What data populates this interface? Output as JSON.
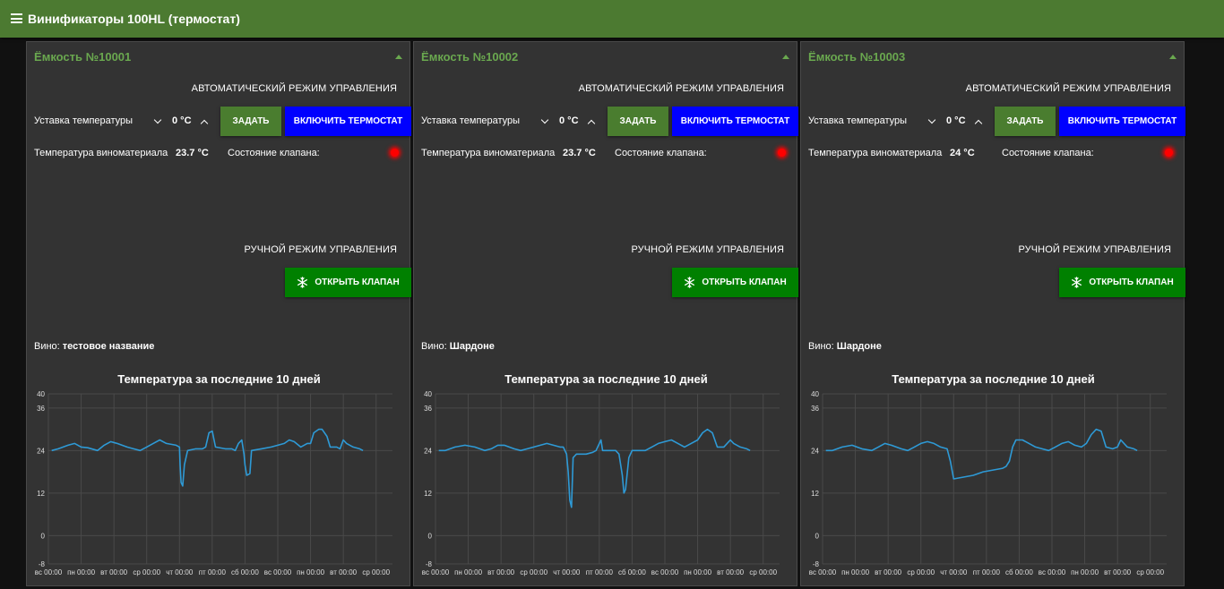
{
  "app": {
    "title": "Винификаторы 100HL (термостат)",
    "menu_icon": "hamburger-menu-icon",
    "collapse_icon": "triangle-up-icon",
    "valve_icon": "snowflake-icon"
  },
  "colors": {
    "topbar": "#4c7a31",
    "card_title": "#6aa84f",
    "set_button": "#4a7d2f",
    "thermostat_button": "#0000ff",
    "valve_button": "#008000",
    "led_off": "#ff0000",
    "chart_line": "#2e9ad6",
    "chart_grid": "#4a4a4a"
  },
  "tanks": [
    {
      "title": "Ёмкость №10001",
      "auto_mode_label": "Автоматический режим управления",
      "setpoint_label": "Уставка температуры",
      "setpoint_value": "0 °C",
      "set_button": "Задать",
      "thermostat_button": "Включить термостат",
      "temp_label": "Температура виноматериала",
      "temp_value": "23.7 °C",
      "valve_label": "Состояние клапана:",
      "manual_mode_label": "Ручной режим управления",
      "open_valve_button": "Открыть клапан",
      "wine_label": "Вино:",
      "wine_name": "тестовое название",
      "chart_title": "Температура за последние 10 дней"
    },
    {
      "title": "Ёмкость №10002",
      "auto_mode_label": "Автоматический режим управления",
      "setpoint_label": "Уставка температуры",
      "setpoint_value": "0 °C",
      "set_button": "Задать",
      "thermostat_button": "Включить термостат",
      "temp_label": "Температура виноматериала",
      "temp_value": "23.7 °C",
      "valve_label": "Состояние клапана:",
      "manual_mode_label": "Ручной режим управления",
      "open_valve_button": "Открыть клапан",
      "wine_label": "Вино:",
      "wine_name": "Шардоне",
      "chart_title": "Температура за последние 10 дней"
    },
    {
      "title": "Ёмкость №10003",
      "auto_mode_label": "Автоматический режим управления",
      "setpoint_label": "Уставка температуры",
      "setpoint_value": "0 °C",
      "set_button": "Задать",
      "thermostat_button": "Включить термостат",
      "temp_label": "Температура виноматериала",
      "temp_value": "24 °C",
      "valve_label": "Состояние клапана:",
      "manual_mode_label": "Ручной режим управления",
      "open_valve_button": "Открыть клапан",
      "wine_label": "Вино:",
      "wine_name": "Шардоне",
      "chart_title": "Температура за последние 10 дней"
    }
  ],
  "chart_data": [
    {
      "type": "line",
      "title": "Температура за последние 10 дней",
      "xlabel": "",
      "ylabel": "",
      "ylim": [
        -8,
        40
      ],
      "yticks": [
        40,
        36,
        24,
        12,
        0,
        -8
      ],
      "xlim": [
        0,
        10.5
      ],
      "xticks": [
        {
          "x": 0,
          "label": "вс 00:00"
        },
        {
          "x": 1,
          "label": "пн 00:00"
        },
        {
          "x": 2,
          "label": "вт 00:00"
        },
        {
          "x": 3,
          "label": "ср 00:00"
        },
        {
          "x": 4,
          "label": "чт 00:00"
        },
        {
          "x": 5,
          "label": "пт 00:00"
        },
        {
          "x": 6,
          "label": "сб 00:00"
        },
        {
          "x": 7,
          "label": "вс 00:00"
        },
        {
          "x": 8,
          "label": "пн 00:00"
        },
        {
          "x": 9,
          "label": "вт 00:00"
        },
        {
          "x": 10,
          "label": "ср 00:00"
        }
      ],
      "grid": true,
      "series": [
        {
          "points": [
            [
              0.1,
              24
            ],
            [
              0.3,
              24.5
            ],
            [
              0.6,
              25.5
            ],
            [
              0.8,
              26
            ],
            [
              1.0,
              25
            ],
            [
              1.2,
              24.8
            ],
            [
              1.5,
              24
            ],
            [
              1.7,
              25.5
            ],
            [
              1.9,
              26.5
            ],
            [
              2.1,
              26
            ],
            [
              2.4,
              25
            ],
            [
              2.6,
              24.5
            ],
            [
              2.8,
              24
            ],
            [
              3.0,
              25
            ],
            [
              3.2,
              26
            ],
            [
              3.4,
              27
            ],
            [
              3.6,
              26
            ],
            [
              3.9,
              25.5
            ],
            [
              4.0,
              25
            ],
            [
              4.02,
              20
            ],
            [
              4.05,
              15
            ],
            [
              4.1,
              14
            ],
            [
              4.15,
              20
            ],
            [
              4.25,
              24
            ],
            [
              4.5,
              24.5
            ],
            [
              4.7,
              24.5
            ],
            [
              4.8,
              25
            ],
            [
              4.9,
              29
            ],
            [
              5.0,
              29.5
            ],
            [
              5.1,
              25
            ],
            [
              5.4,
              24.5
            ],
            [
              5.6,
              24.5
            ],
            [
              5.7,
              24
            ],
            [
              5.8,
              26
            ],
            [
              5.9,
              27
            ],
            [
              5.97,
              23
            ],
            [
              6.0,
              20
            ],
            [
              6.05,
              17
            ],
            [
              6.15,
              17.5
            ],
            [
              6.2,
              24
            ],
            [
              6.5,
              24.5
            ],
            [
              6.8,
              25
            ],
            [
              7.0,
              25.5
            ],
            [
              7.2,
              26
            ],
            [
              7.35,
              27
            ],
            [
              7.5,
              26.5
            ],
            [
              7.7,
              25
            ],
            [
              7.9,
              26
            ],
            [
              8.0,
              26
            ],
            [
              8.1,
              29
            ],
            [
              8.25,
              30
            ],
            [
              8.35,
              30
            ],
            [
              8.5,
              28
            ],
            [
              8.6,
              25
            ],
            [
              8.8,
              25
            ],
            [
              8.9,
              24.5
            ],
            [
              9.0,
              27
            ],
            [
              9.1,
              26
            ],
            [
              9.3,
              25
            ],
            [
              9.5,
              24.5
            ],
            [
              9.6,
              24
            ]
          ]
        }
      ]
    },
    {
      "type": "line",
      "title": "Температура за последние 10 дней",
      "xlabel": "",
      "ylabel": "",
      "ylim": [
        -8,
        40
      ],
      "yticks": [
        40,
        36,
        24,
        12,
        0,
        -8
      ],
      "xlim": [
        0,
        10.5
      ],
      "xticks": [
        {
          "x": 0,
          "label": "вс 00:00"
        },
        {
          "x": 1,
          "label": "пн 00:00"
        },
        {
          "x": 2,
          "label": "вт 00:00"
        },
        {
          "x": 3,
          "label": "ср 00:00"
        },
        {
          "x": 4,
          "label": "чт 00:00"
        },
        {
          "x": 5,
          "label": "пт 00:00"
        },
        {
          "x": 6,
          "label": "сб 00:00"
        },
        {
          "x": 7,
          "label": "вс 00:00"
        },
        {
          "x": 8,
          "label": "пн 00:00"
        },
        {
          "x": 9,
          "label": "вт 00:00"
        },
        {
          "x": 10,
          "label": "ср 00:00"
        }
      ],
      "grid": true,
      "series": [
        {
          "points": [
            [
              0.1,
              24
            ],
            [
              0.3,
              24
            ],
            [
              0.6,
              25
            ],
            [
              0.9,
              25.5
            ],
            [
              1.2,
              25
            ],
            [
              1.5,
              24
            ],
            [
              1.7,
              24.5
            ],
            [
              1.9,
              25.5
            ],
            [
              2.1,
              25.5
            ],
            [
              2.4,
              24.5
            ],
            [
              2.6,
              24
            ],
            [
              2.8,
              24.5
            ],
            [
              3.0,
              25
            ],
            [
              3.2,
              25.5
            ],
            [
              3.4,
              26
            ],
            [
              3.6,
              25.5
            ],
            [
              3.8,
              25
            ],
            [
              3.9,
              25
            ],
            [
              4.0,
              23
            ],
            [
              4.05,
              18
            ],
            [
              4.1,
              10
            ],
            [
              4.15,
              8
            ],
            [
              4.2,
              22
            ],
            [
              4.3,
              23
            ],
            [
              4.6,
              23
            ],
            [
              4.8,
              23.5
            ],
            [
              4.9,
              24
            ],
            [
              5.0,
              26
            ],
            [
              5.05,
              27
            ],
            [
              5.1,
              24
            ],
            [
              5.3,
              24
            ],
            [
              5.5,
              24
            ],
            [
              5.6,
              23
            ],
            [
              5.7,
              17
            ],
            [
              5.75,
              12
            ],
            [
              5.8,
              13
            ],
            [
              5.9,
              22
            ],
            [
              6.0,
              24
            ],
            [
              6.2,
              24
            ],
            [
              6.4,
              24
            ],
            [
              6.6,
              25
            ],
            [
              6.8,
              26
            ],
            [
              7.0,
              26.5
            ],
            [
              7.2,
              27
            ],
            [
              7.4,
              26
            ],
            [
              7.6,
              25
            ],
            [
              7.8,
              26
            ],
            [
              8.0,
              27
            ],
            [
              8.15,
              29
            ],
            [
              8.3,
              30
            ],
            [
              8.45,
              29
            ],
            [
              8.6,
              25
            ],
            [
              8.8,
              25
            ],
            [
              9.0,
              27
            ],
            [
              9.1,
              26
            ],
            [
              9.3,
              25
            ],
            [
              9.5,
              24.5
            ],
            [
              9.6,
              24
            ]
          ]
        }
      ]
    },
    {
      "type": "line",
      "title": "Температура за последние 10 дней",
      "xlabel": "",
      "ylabel": "",
      "ylim": [
        -8,
        40
      ],
      "yticks": [
        40,
        36,
        24,
        12,
        0,
        -8
      ],
      "xlim": [
        0,
        10.5
      ],
      "xticks": [
        {
          "x": 0,
          "label": "вс 00:00"
        },
        {
          "x": 1,
          "label": "пн 00:00"
        },
        {
          "x": 2,
          "label": "вт 00:00"
        },
        {
          "x": 3,
          "label": "ср 00:00"
        },
        {
          "x": 4,
          "label": "чт 00:00"
        },
        {
          "x": 5,
          "label": "пт 00:00"
        },
        {
          "x": 6,
          "label": "сб 00:00"
        },
        {
          "x": 7,
          "label": "вс 00:00"
        },
        {
          "x": 8,
          "label": "пн 00:00"
        },
        {
          "x": 9,
          "label": "вт 00:00"
        },
        {
          "x": 10,
          "label": "ср 00:00"
        }
      ],
      "grid": true,
      "series": [
        {
          "points": [
            [
              0.1,
              24
            ],
            [
              0.3,
              24
            ],
            [
              0.6,
              25
            ],
            [
              0.9,
              25.5
            ],
            [
              1.2,
              24.5
            ],
            [
              1.5,
              24
            ],
            [
              1.7,
              25
            ],
            [
              1.9,
              26
            ],
            [
              2.1,
              25.5
            ],
            [
              2.4,
              24.5
            ],
            [
              2.6,
              24
            ],
            [
              2.8,
              25
            ],
            [
              3.0,
              26
            ],
            [
              3.2,
              26.5
            ],
            [
              3.4,
              26
            ],
            [
              3.6,
              25
            ],
            [
              3.8,
              24.5
            ],
            [
              3.9,
              21
            ],
            [
              4.0,
              16
            ],
            [
              4.3,
              16.5
            ],
            [
              4.6,
              17
            ],
            [
              4.9,
              18
            ],
            [
              5.2,
              18.5
            ],
            [
              5.5,
              19
            ],
            [
              5.6,
              19.5
            ],
            [
              5.7,
              21
            ],
            [
              5.8,
              25
            ],
            [
              5.9,
              27
            ],
            [
              6.1,
              27
            ],
            [
              6.3,
              26
            ],
            [
              6.5,
              25
            ],
            [
              6.7,
              24.5
            ],
            [
              6.9,
              24
            ],
            [
              7.1,
              25
            ],
            [
              7.3,
              26
            ],
            [
              7.5,
              26.5
            ],
            [
              7.7,
              25.5
            ],
            [
              7.9,
              25
            ],
            [
              8.05,
              26
            ],
            [
              8.2,
              28.5
            ],
            [
              8.35,
              30
            ],
            [
              8.5,
              29.5
            ],
            [
              8.65,
              25
            ],
            [
              8.85,
              24.5
            ],
            [
              9.0,
              25
            ],
            [
              9.1,
              27
            ],
            [
              9.3,
              25
            ],
            [
              9.5,
              24.5
            ],
            [
              9.6,
              24
            ]
          ]
        }
      ]
    }
  ]
}
